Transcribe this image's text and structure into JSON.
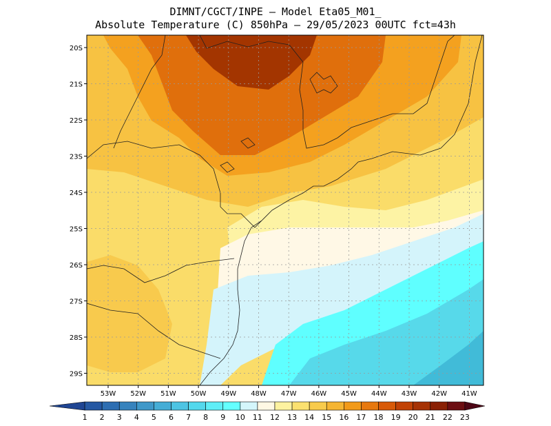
{
  "title": {
    "line1": "DIMNT/CGCT/INPE –  Model Eta05_M01_",
    "line2": "Absolute Temperature (C) 850hPa –  29/05/2023 00UTC fct=43h"
  },
  "map": {
    "lat_labels": [
      "20S",
      "21S",
      "22S",
      "23S",
      "24S",
      "25S",
      "26S",
      "27S",
      "28S",
      "29S"
    ],
    "lon_labels": [
      "53W",
      "52W",
      "51W",
      "50W",
      "49W",
      "48W",
      "47W",
      "46W",
      "45W",
      "44W",
      "43W",
      "42W",
      "41W"
    ],
    "gridline_style": "dotted grey",
    "colors": {
      "warm_dark": "#a33500",
      "warm_mid": "#e06f0c",
      "warm_orange": "#f4a11f",
      "warm_gold": "#f7c242",
      "warm_yellow": "#fadc69",
      "pale_yellow": "#fdf3a4",
      "cream": "#fff8e6",
      "ice": "#d4f4fb",
      "cyan": "#5fffff",
      "teal": "#57d9ea",
      "blue": "#41bbd8"
    }
  },
  "colorbar": {
    "ticks": [
      "1",
      "2",
      "3",
      "4",
      "5",
      "6",
      "7",
      "8",
      "9",
      "10",
      "11",
      "12",
      "13",
      "14",
      "15",
      "16",
      "17",
      "18",
      "19",
      "20",
      "21",
      "22",
      "23"
    ],
    "colors": [
      "#1f4593",
      "#2558a3",
      "#2d6eb2",
      "#3783bd",
      "#3f98c9",
      "#45add6",
      "#4dc4e3",
      "#53d8ec",
      "#5feef7",
      "#64ffff",
      "#d4f6fb",
      "#fff8e4",
      "#fdf2a0",
      "#fbe16f",
      "#f8cb4c",
      "#f5b533",
      "#f29a19",
      "#e7780e",
      "#d85a08",
      "#c14205",
      "#a63204",
      "#8a2004",
      "#6c0e12",
      "#4d0615"
    ]
  }
}
